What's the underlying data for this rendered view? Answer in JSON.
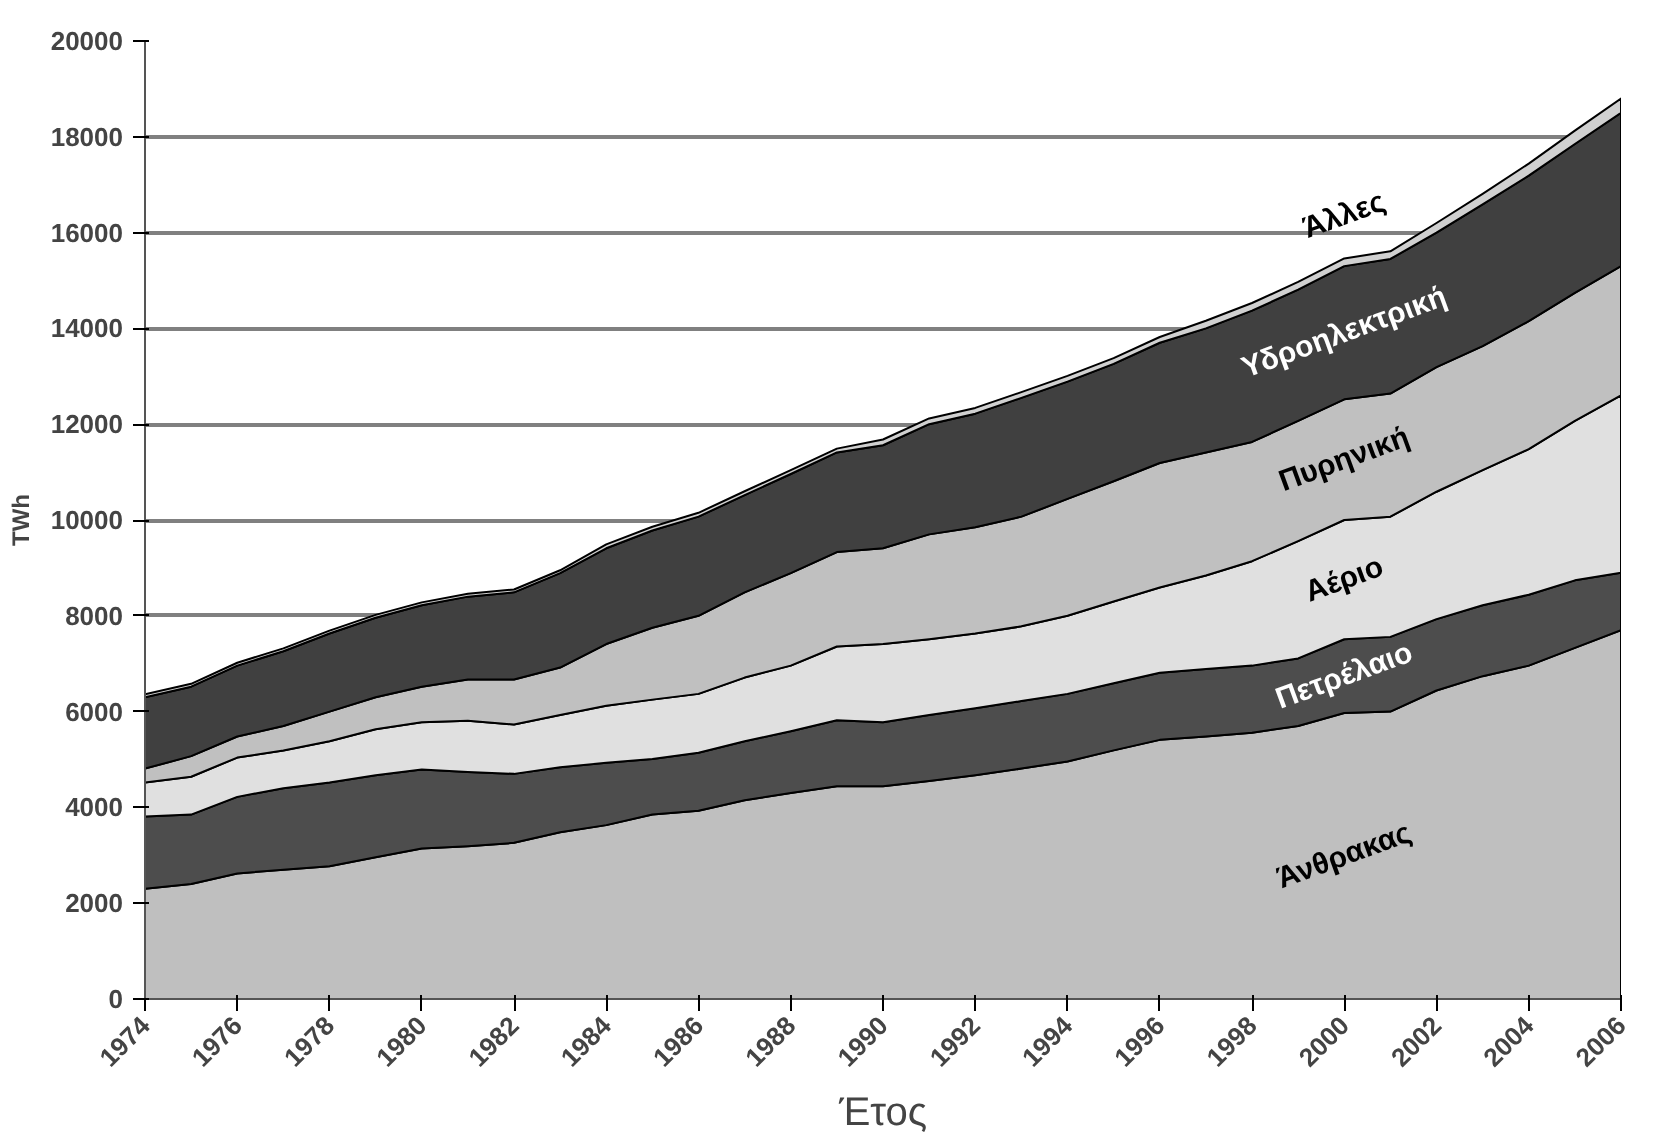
{
  "chart_data": {
    "type": "area",
    "stacked": true,
    "xlabel": "Έτος",
    "ylabel": "TWh",
    "x": [
      1974,
      1975,
      1976,
      1977,
      1978,
      1979,
      1980,
      1981,
      1982,
      1983,
      1984,
      1985,
      1986,
      1987,
      1988,
      1989,
      1990,
      1991,
      1992,
      1993,
      1994,
      1995,
      1996,
      1997,
      1998,
      1999,
      2000,
      2001,
      2002,
      2003,
      2004,
      2005,
      2006
    ],
    "xlim": [
      1974,
      2006
    ],
    "xticks": [
      1974,
      1976,
      1978,
      1980,
      1982,
      1984,
      1986,
      1988,
      1990,
      1992,
      1994,
      1996,
      1998,
      2000,
      2002,
      2004,
      2006
    ],
    "ylim": [
      0,
      20000
    ],
    "yticks": [
      0,
      2000,
      4000,
      6000,
      8000,
      10000,
      12000,
      14000,
      16000,
      18000,
      20000
    ],
    "grid": "y",
    "legend": false,
    "series": [
      {
        "name": "Άνθρακας",
        "color": "#bfbfbf",
        "values": [
          2300,
          2400,
          2620,
          2700,
          2770,
          2960,
          3140,
          3190,
          3260,
          3480,
          3630,
          3850,
          3930,
          4150,
          4300,
          4440,
          4440,
          4550,
          4670,
          4810,
          4960,
          5190,
          5410,
          5480,
          5560,
          5700,
          5970,
          6000,
          6440,
          6740,
          6960,
          7330,
          7700
        ]
      },
      {
        "name": "Πετρέλαιο",
        "color": "#4d4d4d",
        "values": [
          1510,
          1450,
          1600,
          1700,
          1750,
          1710,
          1650,
          1550,
          1440,
          1360,
          1300,
          1160,
          1210,
          1230,
          1290,
          1380,
          1340,
          1380,
          1400,
          1410,
          1410,
          1400,
          1400,
          1410,
          1400,
          1410,
          1540,
          1560,
          1490,
          1480,
          1480,
          1410,
          1200
        ]
      },
      {
        "name": "Αέριο",
        "color": "#e0e0e0",
        "values": [
          710,
          790,
          820,
          790,
          860,
          960,
          990,
          1070,
          1030,
          1090,
          1190,
          1240,
          1230,
          1330,
          1370,
          1540,
          1630,
          1580,
          1560,
          1560,
          1630,
          1710,
          1780,
          1950,
          2180,
          2450,
          2490,
          2510,
          2660,
          2820,
          3040,
          3330,
          3700
        ]
      },
      {
        "name": "Πυρηνική",
        "color": "#c0c0c0",
        "values": [
          290,
          430,
          440,
          510,
          620,
          670,
          740,
          860,
          940,
          990,
          1290,
          1500,
          1630,
          1780,
          1930,
          1970,
          2000,
          2190,
          2220,
          2290,
          2440,
          2510,
          2600,
          2570,
          2490,
          2510,
          2520,
          2570,
          2600,
          2590,
          2670,
          2670,
          2700
        ]
      },
      {
        "name": "Υδροηλεκτρική",
        "color": "#404040",
        "values": [
          1490,
          1450,
          1480,
          1560,
          1630,
          1660,
          1700,
          1730,
          1820,
          1970,
          2000,
          2030,
          2070,
          2030,
          2070,
          2080,
          2150,
          2300,
          2370,
          2480,
          2450,
          2450,
          2510,
          2590,
          2740,
          2740,
          2780,
          2810,
          2810,
          2960,
          3040,
          3110,
          3200
        ]
      },
      {
        "name": "Άλλες",
        "color": "#d0d0d0",
        "values": [
          60,
          60,
          60,
          60,
          60,
          60,
          60,
          60,
          60,
          60,
          80,
          80,
          80,
          80,
          80,
          80,
          120,
          120,
          120,
          120,
          120,
          120,
          120,
          160,
          160,
          160,
          160,
          160,
          200,
          220,
          250,
          280,
          300
        ]
      }
    ]
  }
}
